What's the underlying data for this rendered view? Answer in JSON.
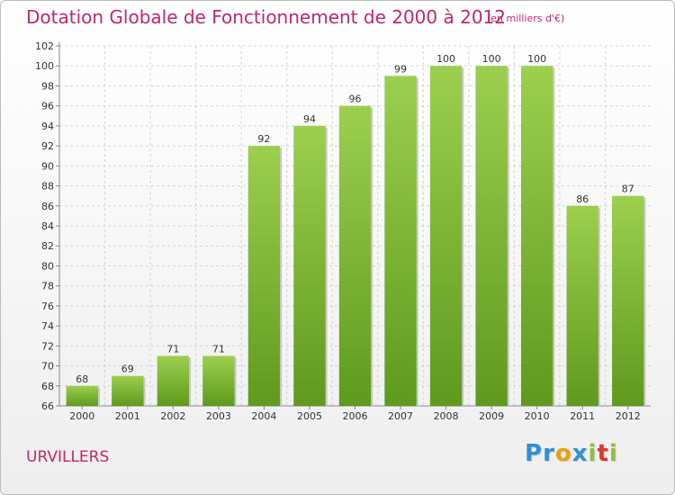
{
  "header": {
    "title": "Dotation Globale de Fonctionnement de 2000 à 2012",
    "unit": "(en milliers d'€)"
  },
  "footer": {
    "commune": "URVILLERS",
    "brand_letters": [
      "P",
      "r",
      "o",
      "x",
      "i",
      "t",
      "i"
    ],
    "brand_colors": [
      "#2f8fd5",
      "#2f8fd5",
      "#e8a20c",
      "#2f8fd5",
      "#8ac23a",
      "#d93b2b",
      "#8ac23a"
    ]
  },
  "chart_data": {
    "type": "bar",
    "categories": [
      "2000",
      "2001",
      "2002",
      "2003",
      "2004",
      "2005",
      "2006",
      "2007",
      "2008",
      "2009",
      "2010",
      "2011",
      "2012"
    ],
    "values": [
      68,
      69,
      71,
      71,
      92,
      94,
      96,
      99,
      100,
      100,
      100,
      86,
      87
    ],
    "ylim": [
      66,
      102
    ],
    "yticks": [
      66,
      68,
      70,
      72,
      74,
      76,
      78,
      80,
      82,
      84,
      86,
      88,
      90,
      92,
      94,
      96,
      98,
      100,
      102
    ],
    "grid": true,
    "bar_color_top": "#9ccf4e",
    "bar_color_bottom": "#5f9a1d"
  }
}
